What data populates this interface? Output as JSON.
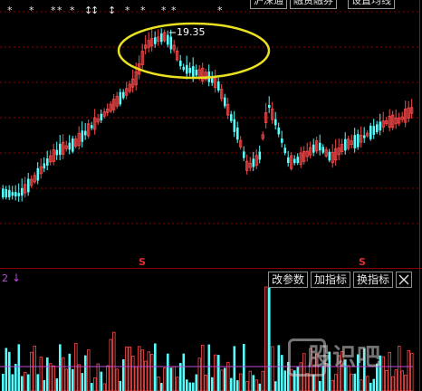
{
  "top_markers": {
    "symbol": "*",
    "arrow_symbol": "↕",
    "buttons": [
      "沪深通",
      "融资融券",
      "设置均线"
    ]
  },
  "price_annotation": "19.35",
  "signal_marks": [
    "S",
    "S"
  ],
  "indicator": {
    "label": "2",
    "arrow": "↓",
    "buttons": [
      "改参数",
      "加指标",
      "换指标"
    ]
  },
  "watermark": "股识吧",
  "colors": {
    "background": "#000000",
    "up_candle": "#ff4a4a",
    "down_candle": "#54ffff",
    "gridline": "#8b0000",
    "highlight_ellipse": "#e8e020",
    "indicator_line": "#c04bd8"
  }
}
